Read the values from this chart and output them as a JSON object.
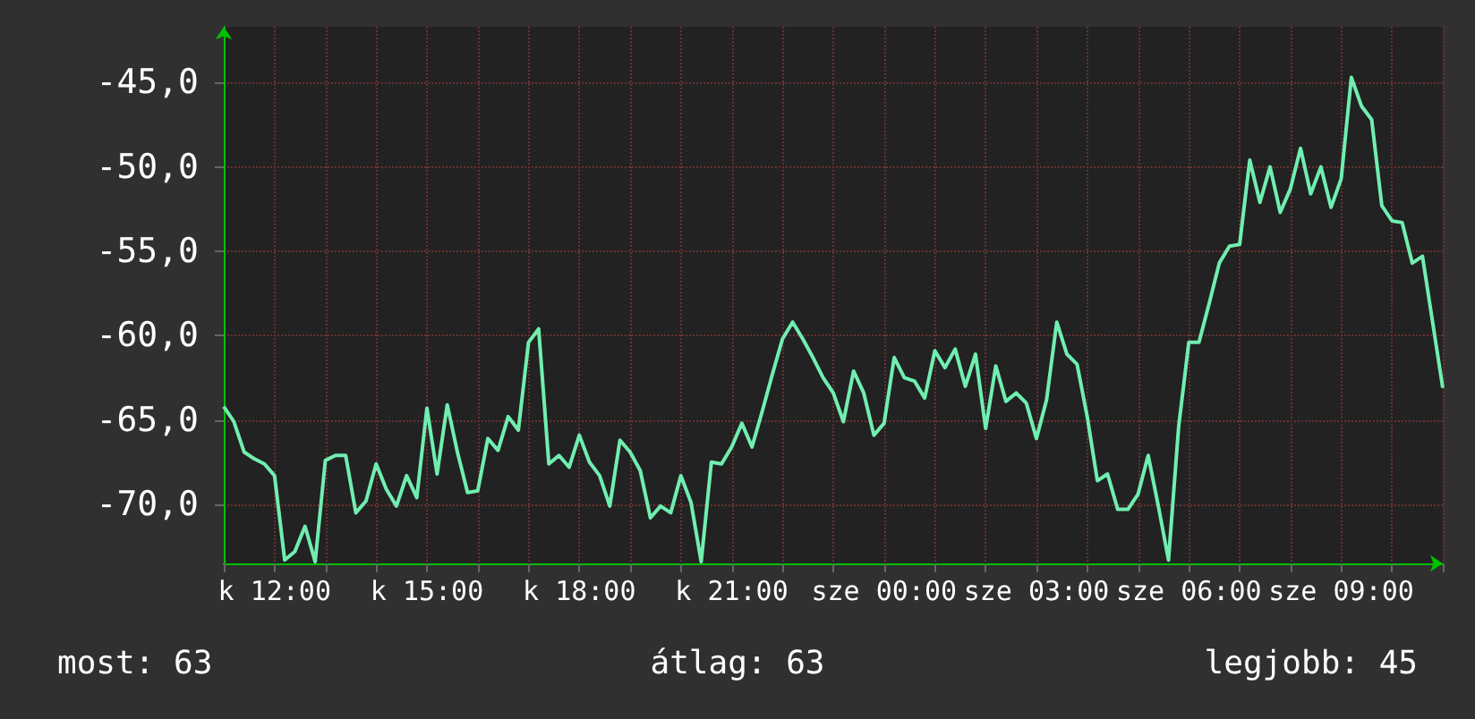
{
  "chart_data": {
    "type": "line",
    "ylim": [
      -73.5,
      -41.7
    ],
    "categories": [
      null,
      null,
      null,
      null,
      null,
      "k 12:00",
      null,
      null,
      null,
      null,
      null,
      null,
      null,
      null,
      null,
      null,
      null,
      null,
      null,
      null,
      "k 15:00",
      null,
      null,
      null,
      null,
      null,
      null,
      null,
      null,
      null,
      null,
      null,
      null,
      null,
      null,
      "k 18:00",
      null,
      null,
      null,
      null,
      null,
      null,
      null,
      null,
      null,
      null,
      null,
      null,
      null,
      null,
      "k 21:00",
      null,
      null,
      null,
      null,
      null,
      null,
      null,
      null,
      null,
      null,
      null,
      null,
      null,
      null,
      "sze 00:00",
      null,
      null,
      null,
      null,
      null,
      null,
      null,
      null,
      null,
      null,
      null,
      null,
      null,
      null,
      "sze 03:00",
      null,
      null,
      null,
      null,
      null,
      null,
      null,
      null,
      null,
      null,
      null,
      null,
      null,
      null,
      "sze 06:00",
      null,
      null,
      null,
      null,
      null,
      null,
      null,
      null,
      null,
      null,
      null,
      null,
      null,
      null,
      "sze 09:00",
      null,
      null,
      null,
      null,
      null,
      null,
      null,
      null,
      null,
      null
    ],
    "yticks": [
      {
        "value": -70,
        "label": "-70,0"
      },
      {
        "value": -65,
        "label": "-65,0"
      },
      {
        "value": -60,
        "label": "-60,0"
      },
      {
        "value": -55,
        "label": "-55,0"
      },
      {
        "value": -50,
        "label": "-50,0"
      },
      {
        "value": -45,
        "label": "-45,0"
      }
    ],
    "grid": true,
    "annotations": [
      "most: 63",
      "átlag: 63",
      "legjobb: 45"
    ],
    "series": [
      {
        "color": "#70eeb0",
        "values": [
          -64.2,
          -65.1,
          -66.9,
          -67.3,
          -67.6,
          -68.3,
          -73.3,
          -72.8,
          -71.3,
          -73.4,
          -67.4,
          -67.1,
          -67.1,
          -70.5,
          -69.8,
          -67.6,
          -69.1,
          -70.1,
          -68.3,
          -69.6,
          -64.3,
          -68.2,
          -64.1,
          -66.9,
          -69.3,
          -69.2,
          -66.1,
          -66.8,
          -64.8,
          -65.6,
          -60.4,
          -59.6,
          -67.6,
          -67.1,
          -67.8,
          -65.9,
          -67.5,
          -68.3,
          -70.1,
          -66.2,
          -66.9,
          -68.0,
          -70.8,
          -70.1,
          -70.5,
          -68.3,
          -69.9,
          -73.4,
          -67.5,
          -67.6,
          -66.6,
          -65.2,
          -66.6,
          -64.5,
          -62.3,
          -60.2,
          -59.2,
          -60.2,
          -61.3,
          -62.5,
          -63.4,
          -65.1,
          -62.1,
          -63.4,
          -65.9,
          -65.2,
          -61.3,
          -62.5,
          -62.7,
          -63.7,
          -60.9,
          -61.9,
          -60.8,
          -63.0,
          -61.1,
          -65.5,
          -61.8,
          -63.9,
          -63.4,
          -64.0,
          -66.1,
          -63.8,
          -59.2,
          -61.1,
          -61.7,
          -64.8,
          -68.6,
          -68.2,
          -70.3,
          -70.3,
          -69.4,
          -67.1,
          -70.1,
          -73.3,
          -65.4,
          -60.4,
          -60.4,
          -58.1,
          -55.7,
          -54.7,
          -54.6,
          -49.6,
          -52.1,
          -50.0,
          -52.7,
          -51.3,
          -48.9,
          -51.6,
          -50.0,
          -52.4,
          -50.7,
          -44.7,
          -46.4,
          -47.2,
          -52.3,
          -53.2,
          -53.3,
          -55.7,
          -55.3,
          -59.2,
          -63.1
        ]
      }
    ]
  }
}
